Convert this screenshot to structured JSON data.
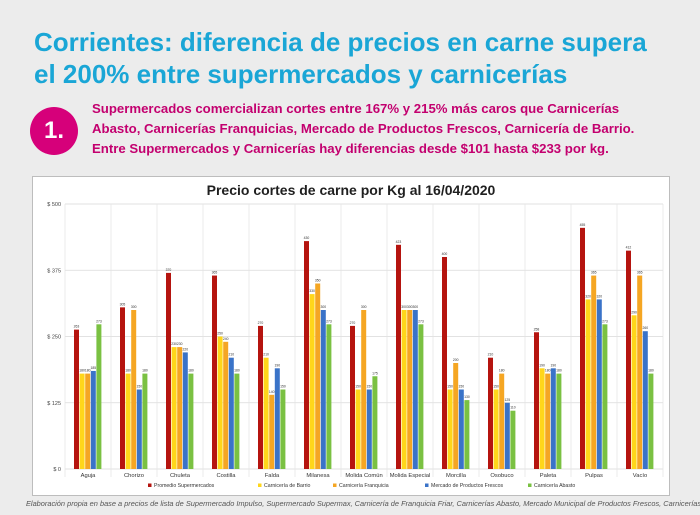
{
  "headline": {
    "line1": "Corrientes: diferencia de precios en carne supera",
    "line2": "el 200% entre supermercados y carnicerías"
  },
  "badge": "1.",
  "points": [
    "Supermercados comercializan cortes entre 167% y 215% más caros que  Carnicerías",
    "Abasto, Carnicerías Franquicias, Mercado de Productos Frescos, Carnicería de Barrio.",
    "Entre Supermercados y Carnicerías hay diferencias desde $101 hasta $233 por kg."
  ],
  "footnote": "Elaboración propia en base a precios de lista de Supermercado Impulso, Supermercado Supermax, Carnicería de Franquicia Friar, Carnicerías Abasto, Mercado Municipal de Productos Frescos, Carnicerías de Barrio.",
  "colors": {
    "headline": "#1aa6d6",
    "accent": "#c3006f",
    "badge": "#d6007a"
  },
  "chart_data": {
    "type": "bar",
    "title": "Precio cortes de carne por Kg al 16/04/2020",
    "ylim": [
      0,
      500
    ],
    "yticks": [
      0,
      125,
      250,
      375,
      500
    ],
    "ytick_labels": [
      "$ 0",
      "$ 125",
      "$ 250",
      "$ 375",
      "$ 500"
    ],
    "grid": true,
    "legend_position": "bottom",
    "categories": [
      "Aguja",
      "Chorizo",
      "Chuleta",
      "Costilla",
      "Falda",
      "Milanesa",
      "Molida Común",
      "Molida Especial",
      "Morcilla",
      "Osobuco",
      "Paleta",
      "Pulpas",
      "Vacío"
    ],
    "series": [
      {
        "name": "Promedio Supermercados",
        "color": "#b5140f",
        "values": [
          263,
          305,
          370,
          365,
          270,
          430,
          270,
          423,
          400,
          210,
          258,
          455,
          412
        ]
      },
      {
        "name": "Carnicería de Barrio",
        "color": "#ffd61a",
        "values": [
          180,
          180,
          230,
          250,
          210,
          330,
          150,
          300,
          150,
          150,
          190,
          320,
          290
        ]
      },
      {
        "name": "Carnicería Franquicia",
        "color": "#f5a623",
        "values": [
          180,
          300,
          230,
          240,
          140,
          350,
          300,
          300,
          200,
          180,
          180,
          365,
          365
        ]
      },
      {
        "name": "Mercado de Productos Frescos",
        "color": "#3a73c8",
        "values": [
          185,
          150,
          220,
          210,
          190,
          300,
          150,
          300,
          150,
          125,
          190,
          320,
          260
        ]
      },
      {
        "name": "Carnicería Abasto",
        "color": "#7ac142",
        "values": [
          273,
          180,
          180,
          180,
          150,
          273,
          175,
          273,
          130,
          110,
          180,
          273,
          180
        ]
      }
    ]
  }
}
